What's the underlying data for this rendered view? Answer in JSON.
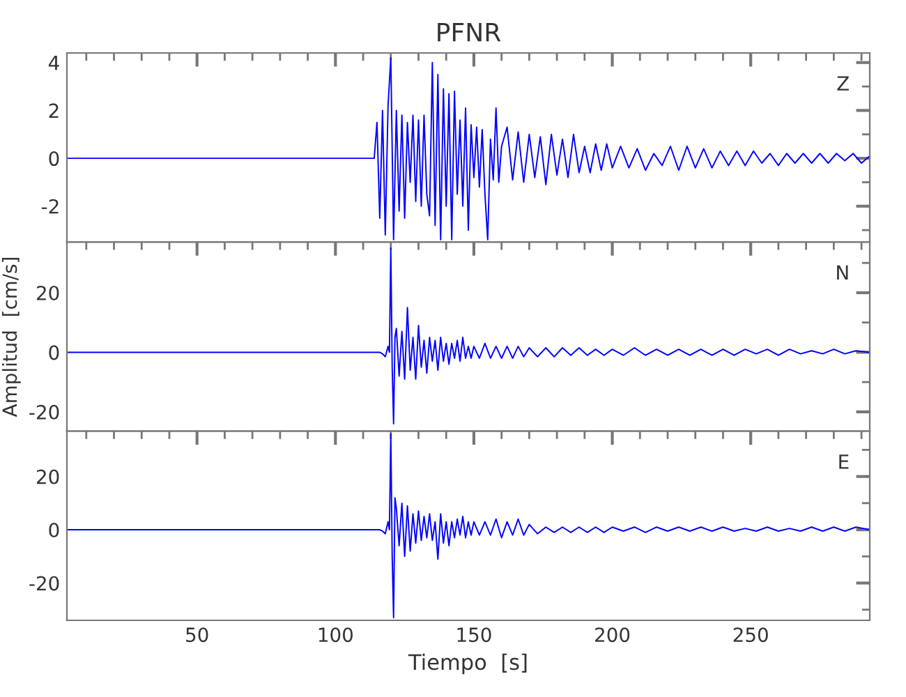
{
  "chart_data": [
    {
      "type": "line",
      "title": "PFNR",
      "annotations": [
        "Z"
      ],
      "tick_labels": "y",
      "xlim": [
        3,
        293
      ],
      "xticks": [
        {
          "value": 10,
          "label": null
        },
        {
          "value": 20,
          "label": null
        },
        {
          "value": 30,
          "label": null
        },
        {
          "value": 40,
          "label": null
        },
        50,
        {
          "value": 60,
          "label": null
        },
        {
          "value": 70,
          "label": null
        },
        {
          "value": 80,
          "label": null
        },
        {
          "value": 90,
          "label": null
        },
        100,
        {
          "value": 110,
          "label": null
        },
        {
          "value": 120,
          "label": null
        },
        {
          "value": 130,
          "label": null
        },
        {
          "value": 140,
          "label": null
        },
        150,
        {
          "value": 160,
          "label": null
        },
        {
          "value": 170,
          "label": null
        },
        {
          "value": 180,
          "label": null
        },
        {
          "value": 190,
          "label": null
        },
        200,
        {
          "value": 210,
          "label": null
        },
        {
          "value": 220,
          "label": null
        },
        {
          "value": 230,
          "label": null
        },
        {
          "value": 240,
          "label": null
        },
        250,
        {
          "value": 260,
          "label": null
        },
        {
          "value": 270,
          "label": null
        },
        {
          "value": 280,
          "label": null
        },
        {
          "value": 290,
          "label": null
        }
      ],
      "ylim": [
        -3.5,
        4.4
      ],
      "yticks": [
        {
          "value": -3,
          "label": null
        },
        -2,
        {
          "value": -1,
          "label": null
        },
        0,
        {
          "value": 1,
          "label": null
        },
        2,
        {
          "value": 3,
          "label": null
        },
        4
      ],
      "series": [
        {
          "color": "#0000ff",
          "x": [
            3,
            114,
            115,
            116,
            117,
            118,
            119,
            120,
            121,
            122,
            123,
            124,
            125,
            126,
            127,
            128,
            129,
            130,
            131,
            132,
            133,
            134,
            135,
            136,
            137,
            138,
            139,
            140,
            141,
            142,
            143,
            144,
            145,
            146,
            147,
            148,
            149,
            150,
            151,
            152,
            153,
            154,
            155,
            156,
            157,
            158,
            159,
            160,
            162,
            164,
            166,
            168,
            170,
            172,
            174,
            176,
            178,
            180,
            182,
            184,
            186,
            188,
            190,
            192,
            194,
            196,
            198,
            200,
            203,
            206,
            209,
            212,
            215,
            218,
            221,
            224,
            227,
            230,
            233,
            236,
            239,
            242,
            245,
            248,
            251,
            254,
            257,
            260,
            263,
            266,
            269,
            272,
            275,
            278,
            281,
            284,
            287,
            290,
            293
          ],
          "values": [
            0,
            0,
            1.5,
            -2.5,
            2.0,
            -3.2,
            2.2,
            4.2,
            -3.4,
            2.0,
            -2.2,
            1.8,
            -2.5,
            1.5,
            -1.0,
            1.8,
            -1.8,
            1.6,
            -2.0,
            1.8,
            -1.5,
            -2.4,
            4.0,
            -2.8,
            3.5,
            -3.4,
            2.9,
            -2.0,
            2.7,
            -3.4,
            2.8,
            -1.5,
            1.6,
            -2.0,
            2.1,
            -3.0,
            1.4,
            -0.8,
            1.3,
            -1.2,
            1.2,
            -1.5,
            -3.4,
            0.8,
            -0.9,
            2.1,
            -1.0,
            0.5,
            1.3,
            -0.9,
            1.1,
            -1.0,
            1.0,
            -0.8,
            0.9,
            -1.1,
            1.0,
            -0.7,
            0.8,
            -0.8,
            1.0,
            -0.6,
            0.5,
            -0.6,
            0.6,
            -0.5,
            0.6,
            -0.4,
            0.5,
            -0.4,
            0.4,
            -0.5,
            0.2,
            -0.3,
            0.5,
            -0.5,
            0.5,
            -0.4,
            0.4,
            -0.4,
            0.3,
            -0.3,
            0.3,
            -0.3,
            0.3,
            -0.2,
            0.2,
            -0.3,
            0.2,
            -0.2,
            0.2,
            -0.2,
            0.2,
            -0.2,
            0.2,
            -0.1,
            0.2,
            -0.2,
            0.1
          ]
        }
      ]
    },
    {
      "type": "line",
      "ylabel": "Amplitud  [cm/s]",
      "annotations": [
        "N"
      ],
      "tick_labels": "y",
      "xlim": [
        3,
        293
      ],
      "xticks": [
        {
          "value": 10,
          "label": null
        },
        {
          "value": 20,
          "label": null
        },
        {
          "value": 30,
          "label": null
        },
        {
          "value": 40,
          "label": null
        },
        50,
        {
          "value": 60,
          "label": null
        },
        {
          "value": 70,
          "label": null
        },
        {
          "value": 80,
          "label": null
        },
        {
          "value": 90,
          "label": null
        },
        100,
        {
          "value": 110,
          "label": null
        },
        {
          "value": 120,
          "label": null
        },
        {
          "value": 130,
          "label": null
        },
        {
          "value": 140,
          "label": null
        },
        150,
        {
          "value": 160,
          "label": null
        },
        {
          "value": 170,
          "label": null
        },
        {
          "value": 180,
          "label": null
        },
        {
          "value": 190,
          "label": null
        },
        200,
        {
          "value": 210,
          "label": null
        },
        {
          "value": 220,
          "label": null
        },
        {
          "value": 230,
          "label": null
        },
        {
          "value": 240,
          "label": null
        },
        250,
        {
          "value": 260,
          "label": null
        },
        {
          "value": 270,
          "label": null
        },
        {
          "value": 280,
          "label": null
        },
        {
          "value": 290,
          "label": null
        }
      ],
      "ylim": [
        -26.5,
        37
      ],
      "yticks": [
        -20,
        {
          "value": -10,
          "label": null
        },
        0,
        {
          "value": 10,
          "label": null
        },
        20,
        {
          "value": 30,
          "label": null
        }
      ],
      "series": [
        {
          "color": "#0000ff",
          "x": [
            3,
            116,
            117,
            118,
            119,
            119.5,
            120,
            120.5,
            121,
            121.5,
            122,
            123,
            124,
            125,
            126,
            127,
            128,
            129,
            130,
            131,
            132,
            133,
            134,
            135,
            136,
            137,
            138,
            139,
            140,
            141,
            142,
            143,
            144,
            145,
            146,
            147,
            148,
            149,
            150,
            152,
            154,
            156,
            158,
            160,
            162,
            164,
            166,
            168,
            170,
            173,
            176,
            179,
            182,
            185,
            188,
            191,
            194,
            197,
            200,
            204,
            208,
            212,
            216,
            220,
            224,
            228,
            232,
            236,
            240,
            244,
            248,
            252,
            256,
            260,
            264,
            268,
            272,
            276,
            280,
            284,
            288,
            293
          ],
          "values": [
            0,
            0,
            -0.5,
            -1.5,
            2,
            0,
            35,
            -5,
            -24,
            5,
            8,
            -8,
            7,
            -9,
            15,
            -6,
            5,
            -9,
            9,
            -5,
            4,
            -7,
            5,
            -3,
            4,
            -6,
            5,
            -3,
            3,
            -4,
            3,
            -2,
            4,
            -3,
            5,
            -2,
            2,
            -2,
            2,
            -2,
            3,
            -2,
            2,
            -2,
            2,
            -2,
            2,
            -1.5,
            1.5,
            -1.5,
            1.5,
            -1.5,
            1.5,
            -1,
            1.5,
            -1,
            1,
            -1,
            1,
            -1,
            1.5,
            -1,
            1,
            -1,
            1,
            -1,
            1,
            -1,
            1,
            -1,
            1,
            -0.5,
            1,
            -1,
            1,
            -0.5,
            0.5,
            -0.5,
            1,
            -0.5,
            0.5,
            0
          ]
        }
      ]
    },
    {
      "type": "line",
      "xlabel": "Tiempo  [s]",
      "annotations": [
        "E"
      ],
      "xlim": [
        3,
        293
      ],
      "xticks": [
        {
          "value": 10,
          "label": null
        },
        {
          "value": 20,
          "label": null
        },
        {
          "value": 30,
          "label": null
        },
        {
          "value": 40,
          "label": null
        },
        50,
        {
          "value": 60,
          "label": null
        },
        {
          "value": 70,
          "label": null
        },
        {
          "value": 80,
          "label": null
        },
        {
          "value": 90,
          "label": null
        },
        100,
        {
          "value": 110,
          "label": null
        },
        {
          "value": 120,
          "label": null
        },
        {
          "value": 130,
          "label": null
        },
        {
          "value": 140,
          "label": null
        },
        150,
        {
          "value": 160,
          "label": null
        },
        {
          "value": 170,
          "label": null
        },
        {
          "value": 180,
          "label": null
        },
        {
          "value": 190,
          "label": null
        },
        200,
        {
          "value": 210,
          "label": null
        },
        {
          "value": 220,
          "label": null
        },
        {
          "value": 230,
          "label": null
        },
        {
          "value": 240,
          "label": null
        },
        250,
        {
          "value": 260,
          "label": null
        },
        {
          "value": 270,
          "label": null
        },
        {
          "value": 280,
          "label": null
        },
        {
          "value": 290,
          "label": null
        }
      ],
      "ylim": [
        -34,
        37
      ],
      "yticks": [
        {
          "value": -30,
          "label": null
        },
        -20,
        {
          "value": -10,
          "label": null
        },
        0,
        {
          "value": 10,
          "label": null
        },
        20,
        {
          "value": 30,
          "label": null
        }
      ],
      "series": [
        {
          "color": "#0000ff",
          "x": [
            3,
            116,
            117,
            118,
            119,
            119.5,
            120,
            120.5,
            121,
            121.5,
            122,
            123,
            124,
            125,
            126,
            127,
            128,
            129,
            130,
            131,
            132,
            133,
            134,
            135,
            136,
            137,
            138,
            139,
            140,
            141,
            142,
            143,
            144,
            145,
            146,
            147,
            148,
            149,
            150,
            152,
            154,
            156,
            158,
            160,
            162,
            164,
            166,
            168,
            170,
            173,
            176,
            179,
            182,
            185,
            188,
            191,
            194,
            197,
            200,
            204,
            208,
            212,
            216,
            220,
            224,
            228,
            232,
            236,
            240,
            244,
            248,
            252,
            256,
            260,
            264,
            268,
            272,
            276,
            280,
            284,
            288,
            293
          ],
          "values": [
            0,
            0,
            -0.5,
            -1.5,
            3,
            0,
            36,
            -10,
            -33,
            12,
            8,
            -6,
            10,
            -10,
            9,
            -8,
            6,
            -5,
            7,
            -4,
            5,
            -3,
            6,
            -4,
            3,
            -11,
            6,
            -5,
            3,
            -6,
            3,
            -3,
            4,
            -2,
            5,
            -3,
            3,
            -2,
            3,
            -2,
            3,
            -2,
            4,
            -3,
            3,
            -2,
            4,
            -2,
            2,
            -1.5,
            1,
            -1,
            1,
            -1,
            1,
            -1,
            1,
            -1,
            1,
            -0.5,
            1,
            -1,
            1,
            -0.5,
            1,
            -0.5,
            1,
            -0.5,
            1,
            -0.5,
            0.5,
            -0.5,
            1,
            -0.5,
            0.5,
            -0.5,
            1,
            -0.5,
            1,
            -0.5,
            1,
            0
          ]
        }
      ]
    }
  ]
}
